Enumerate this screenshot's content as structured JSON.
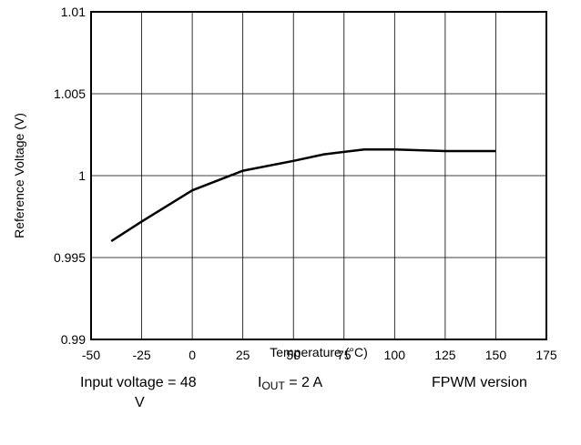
{
  "chart_data": {
    "type": "line",
    "xlabel": "Temperature (°C)",
    "ylabel": "Reference Voltage (V)",
    "xlim": [
      -50,
      175
    ],
    "ylim": [
      0.99,
      1.01
    ],
    "x_ticks": [
      "-50",
      "-25",
      "0",
      "25",
      "50",
      "75",
      "100",
      "125",
      "150",
      "175"
    ],
    "y_ticks": [
      "0.99",
      "0.995",
      "1",
      "1.005",
      "1.01"
    ],
    "grid": true,
    "series": [
      {
        "x": [
          -40,
          -25,
          0,
          25,
          50,
          65,
          85,
          100,
          125,
          150
        ],
        "y": [
          0.996,
          0.9972,
          0.9991,
          1.0003,
          1.0009,
          1.0013,
          1.0016,
          1.0016,
          1.0015,
          1.0015
        ],
        "color": "#000000"
      }
    ]
  },
  "conditions": {
    "input_voltage_line1": "Input voltage = 48",
    "input_voltage_line2": "V",
    "iout_prefix": "I",
    "iout_sub": "OUT",
    "iout_value": " = 2 A",
    "version": "FPWM version"
  }
}
